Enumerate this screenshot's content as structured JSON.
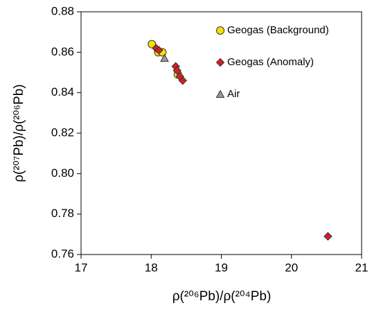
{
  "chart_data": {
    "type": "scatter",
    "x_label": "ρ(²⁰⁶Pb)/ρ(²⁰⁴Pb)",
    "y_label": "ρ(²⁰⁷Pb)/ρ(²⁰⁶Pb)",
    "xlim": [
      17,
      21
    ],
    "xticks": [
      17,
      18,
      19,
      20,
      21
    ],
    "ylim": [
      0.76,
      0.88
    ],
    "yticks": [
      0.76,
      0.78,
      {
        "value": 0.8,
        "label": "0.80"
      },
      0.82,
      0.84,
      0.86,
      0.88
    ],
    "legend": "upper right",
    "series": [
      {
        "name": "Geogas (Background)",
        "color": "#f2e200",
        "marker": "circle",
        "x": [
          18.01,
          18.1,
          18.16,
          18.38
        ],
        "values": [
          0.864,
          0.86,
          0.86,
          0.849
        ]
      },
      {
        "name": "Geogas (Anomaly)",
        "color": "#d42020",
        "marker": "diamond",
        "x": [
          18.07,
          18.11,
          18.35,
          18.37,
          18.41,
          18.45,
          20.52
        ],
        "values": [
          0.862,
          0.861,
          0.853,
          0.851,
          0.848,
          0.846,
          0.769
        ]
      },
      {
        "name": "Air",
        "color": "#9a9a9a",
        "marker": "triangle",
        "x": [
          18.19
        ],
        "values": [
          0.857
        ]
      }
    ]
  }
}
